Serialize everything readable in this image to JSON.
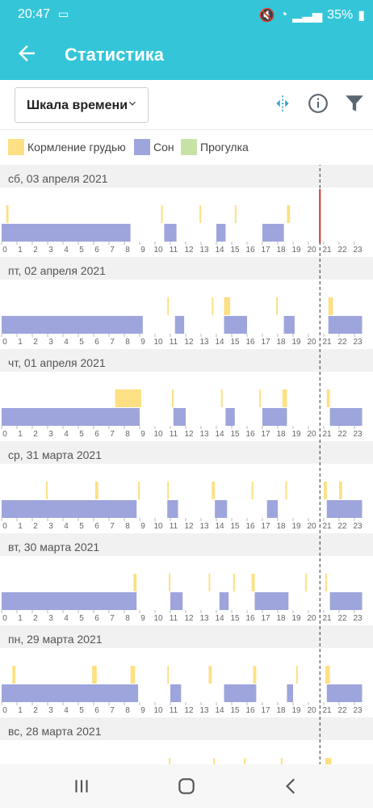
{
  "status_bar": {
    "time": "20:47",
    "battery": "35%"
  },
  "app_bar": {
    "title": "Статистика"
  },
  "toolbar": {
    "scale_label": "Шкала времени"
  },
  "colors": {
    "accent": "#34c6d8",
    "feeding": "#fde083",
    "sleep": "#9ea5dc",
    "walk": "#c6e3a5",
    "day_header": "#f1f1f1",
    "now_marker": "#d0342c"
  },
  "legend": [
    {
      "label": "Кормление грудью",
      "color": "#fde083"
    },
    {
      "label": "Сон",
      "color": "#9ea5dc"
    },
    {
      "label": "Прогулка",
      "color": "#c6e3a5"
    }
  ],
  "chart_data": {
    "type": "timeline",
    "x_hours": [
      "0",
      "1",
      "2",
      "3",
      "4",
      "5",
      "6",
      "7",
      "8",
      "9",
      "10",
      "11",
      "12",
      "13",
      "14",
      "15",
      "16",
      "17",
      "18",
      "19",
      "20",
      "21",
      "22",
      "23"
    ],
    "now_hour": 20.75,
    "days": [
      {
        "label": "сб, 03 апреля 2021",
        "sleep": [
          [
            0,
            8.4
          ],
          [
            10.6,
            11.4
          ],
          [
            14,
            14.6
          ],
          [
            17,
            18.4
          ]
        ],
        "feeding": [
          [
            0.3,
            0.45
          ],
          [
            10.4,
            10.5
          ],
          [
            12.9,
            13
          ],
          [
            15.2,
            15.3
          ],
          [
            18.6,
            18.8
          ]
        ]
      },
      {
        "label": "пт, 02 апреля 2021",
        "sleep": [
          [
            0,
            9.2
          ],
          [
            11.3,
            11.9
          ],
          [
            14.5,
            16
          ],
          [
            18.4,
            19.1
          ],
          [
            21.3,
            23.5
          ]
        ],
        "feeding": [
          [
            10.8,
            10.9
          ],
          [
            13.7,
            13.8
          ],
          [
            14.5,
            14.9
          ],
          [
            17.9,
            18
          ],
          [
            21.3,
            21.6
          ]
        ]
      },
      {
        "label": "чт, 01 апреля 2021",
        "sleep": [
          [
            0,
            9
          ],
          [
            11.2,
            12
          ],
          [
            14.6,
            15.2
          ],
          [
            17,
            18.6
          ],
          [
            21.4,
            23.5
          ]
        ],
        "feeding": [
          [
            7.4,
            9.1
          ],
          [
            11.1,
            11.2
          ],
          [
            14.3,
            14.4
          ],
          [
            16.8,
            16.9
          ],
          [
            18.3,
            18.6
          ],
          [
            21.2,
            21.4
          ]
        ]
      },
      {
        "label": "ср, 31 марта 2021",
        "sleep": [
          [
            0,
            8.8
          ],
          [
            10.8,
            11.5
          ],
          [
            13.9,
            14.7
          ],
          [
            17.3,
            18
          ],
          [
            21.2,
            23.5
          ]
        ],
        "feeding": [
          [
            2.9,
            3
          ],
          [
            6.1,
            6.3
          ],
          [
            8.9,
            9
          ],
          [
            10.8,
            10.9
          ],
          [
            13.7,
            13.9
          ],
          [
            16.3,
            16.4
          ],
          [
            18.5,
            18.6
          ],
          [
            21,
            21.2
          ],
          [
            22,
            22.2
          ]
        ]
      },
      {
        "label": "вт, 30 марта 2021",
        "sleep": [
          [
            0,
            8.8
          ],
          [
            11,
            11.8
          ],
          [
            14.2,
            14.8
          ],
          [
            16.5,
            18.7
          ],
          [
            21.4,
            23.5
          ]
        ],
        "feeding": [
          [
            8.6,
            8.8
          ],
          [
            10.9,
            11
          ],
          [
            13.5,
            13.6
          ],
          [
            15.1,
            15.2
          ],
          [
            16.3,
            16.5
          ],
          [
            19.8,
            19.85
          ],
          [
            21.1,
            21.2
          ]
        ]
      },
      {
        "label": "пн, 29 марта 2021",
        "sleep": [
          [
            0,
            8.9
          ],
          [
            11,
            11.7
          ],
          [
            14.5,
            16.6
          ],
          [
            18.6,
            19
          ],
          [
            21.2,
            23.5
          ]
        ],
        "feeding": [
          [
            0.7,
            0.9
          ],
          [
            5.9,
            6.2
          ],
          [
            8.4,
            8.7
          ],
          [
            10.8,
            10.9
          ],
          [
            13.5,
            13.7
          ],
          [
            16.4,
            16.6
          ],
          [
            19.2,
            19.3
          ],
          [
            21.1,
            21.4
          ]
        ]
      },
      {
        "label": "вс, 28 марта 2021",
        "sleep": [],
        "feeding": [
          [
            10.9,
            11
          ],
          [
            13.8,
            13.9
          ],
          [
            15.8,
            15.9
          ],
          [
            18.2,
            18.3
          ],
          [
            21.1,
            21.5
          ]
        ]
      }
    ]
  }
}
